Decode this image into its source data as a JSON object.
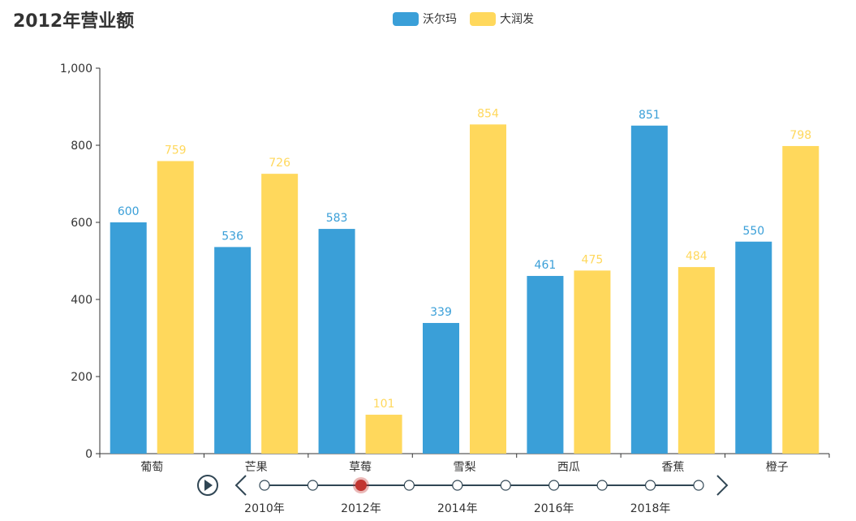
{
  "chart_data": {
    "type": "bar",
    "title": "2012年营业额",
    "categories": [
      "葡萄",
      "芒果",
      "草莓",
      "雪梨",
      "西瓜",
      "香蕉",
      "橙子"
    ],
    "series": [
      {
        "name": "沃尔玛",
        "values": [
          600,
          536,
          583,
          339,
          461,
          851,
          550
        ],
        "color": "#3a9fd8"
      },
      {
        "name": "大润发",
        "values": [
          759,
          726,
          101,
          854,
          475,
          484,
          798
        ],
        "color": "#ffd85c"
      }
    ],
    "ylim": [
      0,
      1000
    ],
    "yticks": [
      0,
      200,
      400,
      600,
      800,
      1000
    ],
    "ytick_labels": [
      "0",
      "200",
      "400",
      "600",
      "800",
      "1,000"
    ],
    "grid": false,
    "legend_position": "top-center",
    "data_labels": true
  },
  "timeline": {
    "years": [
      "2010年",
      "2011年",
      "2012年",
      "2013年",
      "2014年",
      "2015年",
      "2016年",
      "2017年",
      "2018年",
      "2019年"
    ],
    "labeled_years": [
      "2010年",
      "2012年",
      "2014年",
      "2016年",
      "2018年"
    ],
    "current": "2012年",
    "current_color": "#c23531"
  }
}
